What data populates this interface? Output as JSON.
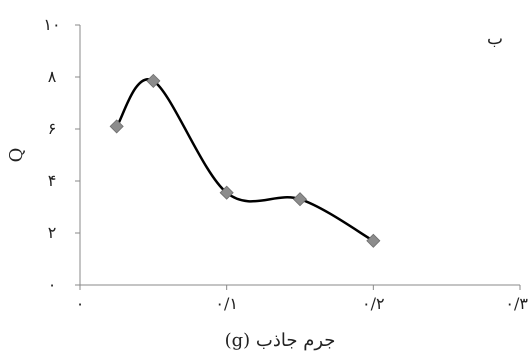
{
  "chart_data": {
    "type": "scatter",
    "panel_label": "ب",
    "xlabel": "جرم جاذب (g)",
    "ylabel": "Q",
    "xlim": [
      0,
      0.3
    ],
    "ylim": [
      0,
      10
    ],
    "x_ticks": [
      0,
      0.1,
      0.2,
      0.3
    ],
    "x_tick_labels": [
      "۰",
      "۰/۱",
      "۰/۲",
      "۰/۳"
    ],
    "y_ticks": [
      0,
      2,
      4,
      6,
      8,
      10
    ],
    "y_tick_labels": [
      "۰",
      "۲",
      "۴",
      "۶",
      "۸",
      "۱۰"
    ],
    "grid": false,
    "smooth_line": true,
    "marker": "diamond",
    "marker_color": "#8c8c8c",
    "line_color": "#000000",
    "series": [
      {
        "x": [
          0.025,
          0.05,
          0.1,
          0.15,
          0.2
        ],
        "y": [
          6.1,
          7.85,
          3.55,
          3.3,
          1.7
        ]
      }
    ]
  }
}
